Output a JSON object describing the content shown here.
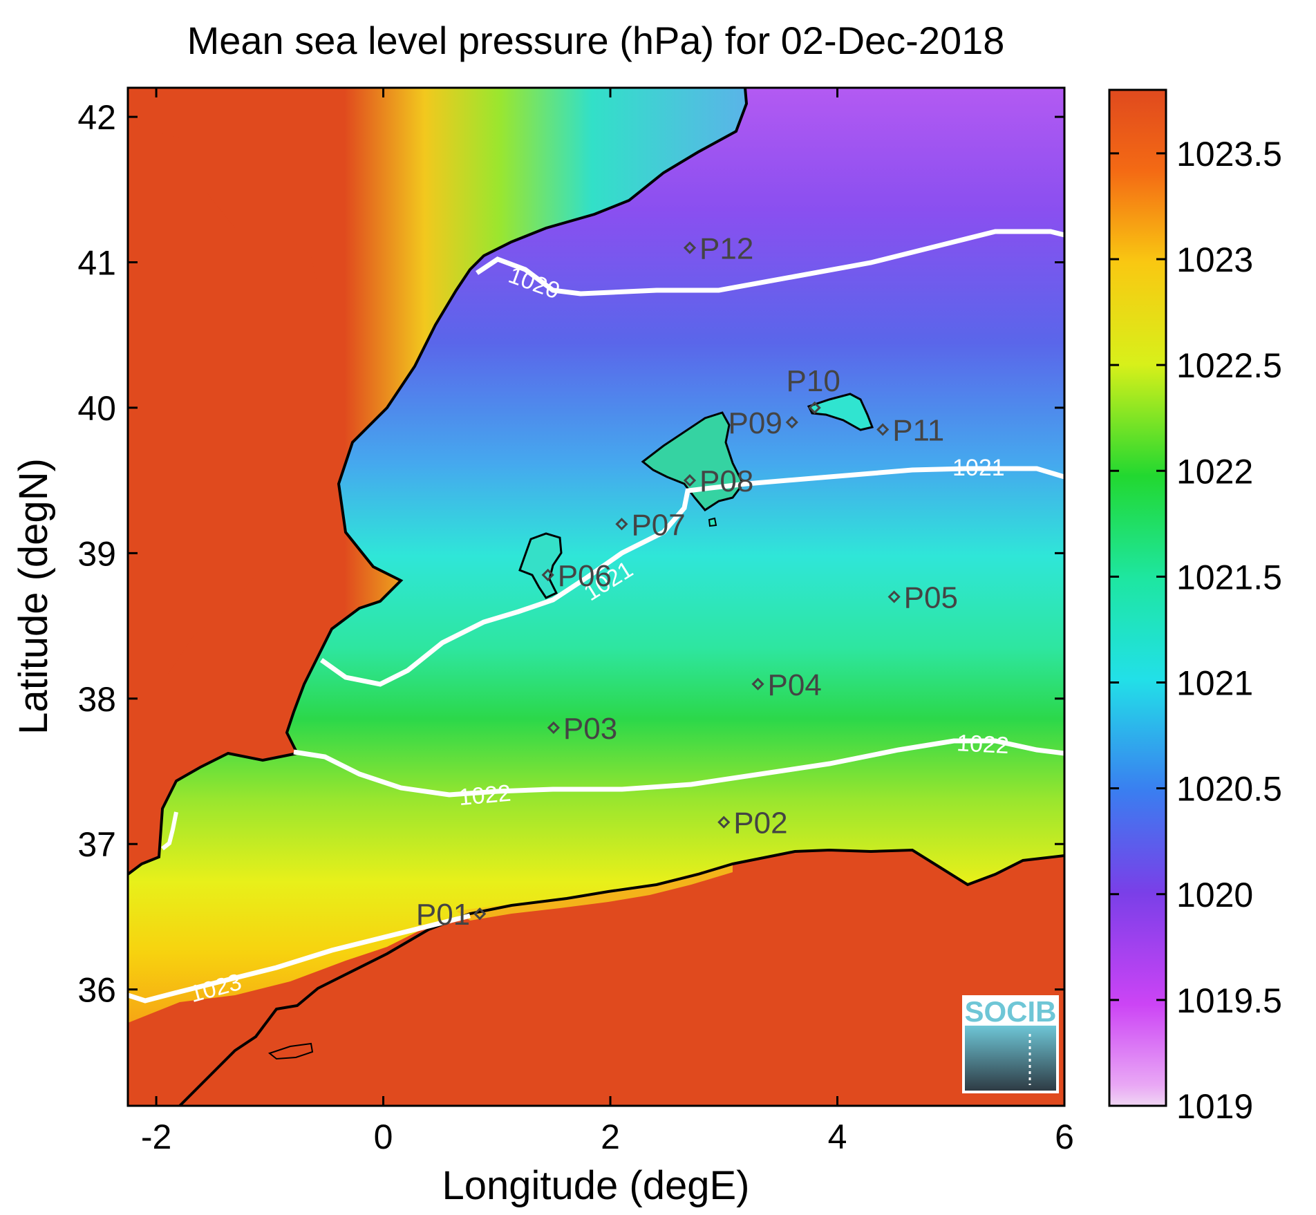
{
  "title": "Mean sea level pressure (hPa) for 02-Dec-2018",
  "xlabel": "Longitude (degE)",
  "ylabel": "Latitude (degN)",
  "xticks": [
    "-2",
    "0",
    "2",
    "4",
    "6"
  ],
  "yticks": [
    "36",
    "37",
    "38",
    "39",
    "40",
    "41",
    "42"
  ],
  "colorbar": {
    "ticks": [
      "1019",
      "1019.5",
      "1020",
      "1020.5",
      "1021",
      "1021.5",
      "1022",
      "1022.5",
      "1023",
      "1023.5"
    ],
    "range": [
      1019,
      1023.8
    ]
  },
  "logo": "SOCIB",
  "points": [
    {
      "name": "P01",
      "lon": 0.85,
      "lat": 36.52
    },
    {
      "name": "P02",
      "lon": 3.0,
      "lat": 37.15
    },
    {
      "name": "P03",
      "lon": 1.5,
      "lat": 37.8
    },
    {
      "name": "P04",
      "lon": 3.3,
      "lat": 38.1
    },
    {
      "name": "P05",
      "lon": 4.5,
      "lat": 38.7
    },
    {
      "name": "P06",
      "lon": 1.45,
      "lat": 38.85
    },
    {
      "name": "P07",
      "lon": 2.1,
      "lat": 39.2
    },
    {
      "name": "P08",
      "lon": 2.7,
      "lat": 39.5
    },
    {
      "name": "P09",
      "lon": 3.6,
      "lat": 39.9
    },
    {
      "name": "P10",
      "lon": 3.8,
      "lat": 40.0
    },
    {
      "name": "P11",
      "lon": 4.4,
      "lat": 39.85
    },
    {
      "name": "P12",
      "lon": 2.7,
      "lat": 41.1
    }
  ],
  "contour_labels": [
    "1020",
    "1021",
    "1021",
    "1022",
    "1022",
    "1023"
  ],
  "colors": {
    "high": "#e04a1e",
    "low": "#d24bf0",
    "contour": "#ffffff",
    "coast": "#000000"
  }
}
